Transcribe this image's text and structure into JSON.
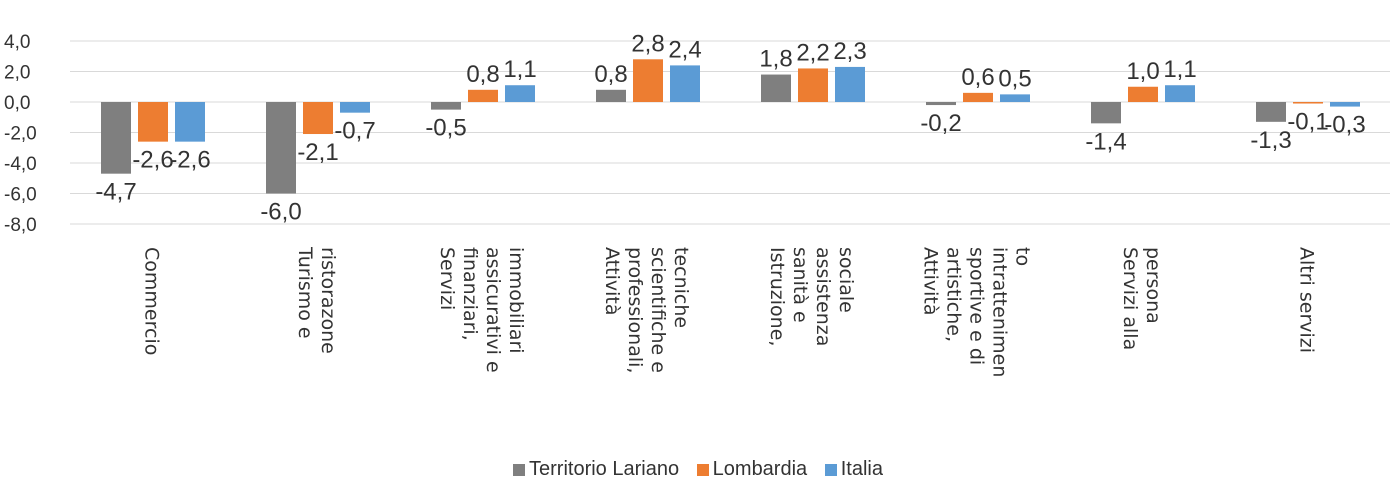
{
  "chart_data": {
    "type": "bar",
    "title": "",
    "xlabel": "",
    "ylabel": "",
    "ylim": [
      -8,
      4
    ],
    "yticks": [
      "4,0",
      "2,0",
      "0,0",
      "-2,0",
      "-4,0",
      "-6,0",
      "-8,0"
    ],
    "grid": true,
    "legend_position": "bottom",
    "categories": [
      [
        "Commercio"
      ],
      [
        "Turismo e",
        "ristorazone"
      ],
      [
        "Servizi",
        "finanziari,",
        "assicurativi e",
        "immobiliari"
      ],
      [
        "Attività",
        "professionali,",
        "scientifiche e",
        "tecniche"
      ],
      [
        "Istruzione,",
        "sanità e",
        "assistenza",
        "sociale"
      ],
      [
        "Attività",
        "artistiche,",
        "sportive e di",
        "intrattenimen",
        "to"
      ],
      [
        "Servizi alla",
        "persona"
      ],
      [
        "Altri servizi"
      ]
    ],
    "series": [
      {
        "name": "Territorio Lariano",
        "color": "#7f7f7f",
        "values": [
          -4.7,
          -6.0,
          -0.5,
          0.8,
          1.8,
          -0.2,
          -1.4,
          -1.3
        ],
        "labels": [
          "-4,7",
          "-6,0",
          "-0,5",
          "0,8",
          "1,8",
          "-0,2",
          "-1,4",
          "-1,3"
        ]
      },
      {
        "name": "Lombardia",
        "color": "#ed7d31",
        "values": [
          -2.6,
          -2.1,
          0.8,
          2.8,
          2.2,
          0.6,
          1.0,
          -0.1
        ],
        "labels": [
          "-2,6",
          "-2,1",
          "0,8",
          "2,8",
          "2,2",
          "0,6",
          "1,0",
          "-0,1"
        ]
      },
      {
        "name": "Italia",
        "color": "#5b9bd5",
        "values": [
          -2.6,
          -0.7,
          1.1,
          2.4,
          2.3,
          0.5,
          1.1,
          -0.3
        ],
        "labels": [
          "-2,6",
          "-0,7",
          "1,1",
          "2,4",
          "2,3",
          "0,5",
          "1,1",
          "-0,3"
        ]
      }
    ]
  }
}
